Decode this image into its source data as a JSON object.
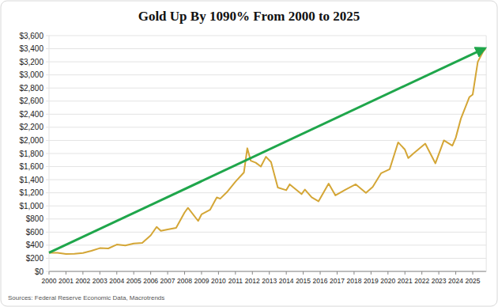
{
  "chart_data": {
    "type": "line",
    "title": "Gold Up By 1090% From 2000 to 2025",
    "source": "Sources: Federal Reserve Economic Data, Macrotrends",
    "color": "#d4a636",
    "grid": true,
    "x": [
      2000,
      2000.5,
      2001,
      2001.5,
      2002,
      2002.5,
      2003,
      2003.5,
      2004,
      2004.5,
      2005,
      2005.5,
      2006,
      2006.35,
      2006.6,
      2007,
      2007.5,
      2008,
      2008.2,
      2008.8,
      2009,
      2009.5,
      2009.9,
      2010.1,
      2010.5,
      2011,
      2011.5,
      2011.7,
      2011.9,
      2012.2,
      2012.5,
      2012.8,
      2013.1,
      2013.5,
      2014,
      2014.2,
      2014.9,
      2015.1,
      2015.5,
      2015.9,
      2016.5,
      2016.9,
      2017.5,
      2018.1,
      2018.7,
      2019.1,
      2019.6,
      2020.1,
      2020.6,
      2021,
      2021.2,
      2021.5,
      2022.2,
      2022.8,
      2023.3,
      2023.8,
      2024,
      2024.3,
      2024.8,
      2025,
      2025.3,
      2025.6,
      2025.75
    ],
    "values": [
      285,
      285,
      265,
      268,
      282,
      315,
      355,
      350,
      410,
      395,
      425,
      435,
      550,
      680,
      620,
      640,
      665,
      900,
      970,
      770,
      870,
      940,
      1130,
      1110,
      1210,
      1370,
      1510,
      1880,
      1690,
      1660,
      1600,
      1750,
      1670,
      1280,
      1240,
      1330,
      1180,
      1250,
      1130,
      1070,
      1340,
      1160,
      1250,
      1330,
      1200,
      1290,
      1500,
      1560,
      1970,
      1860,
      1730,
      1800,
      1950,
      1650,
      2000,
      1920,
      2040,
      2330,
      2660,
      2700,
      3200,
      3350,
      3400
    ],
    "xlim": [
      2000,
      2025.8
    ],
    "xticks": [
      2000,
      2001,
      2002,
      2003,
      2004,
      2005,
      2006,
      2007,
      2008,
      2009,
      2010,
      2011,
      2012,
      2013,
      2014,
      2015,
      2016,
      2017,
      2018,
      2019,
      2020,
      2021,
      2022,
      2023,
      2024,
      2025
    ],
    "ylim": [
      0,
      3600
    ],
    "yticks": [
      {
        "value": 0,
        "label": "$0"
      },
      {
        "value": 200,
        "label": "$200"
      },
      {
        "value": 400,
        "label": "$400"
      },
      {
        "value": 600,
        "label": "$600"
      },
      {
        "value": 800,
        "label": "$800"
      },
      {
        "value": 1000,
        "label": "$1,000"
      },
      {
        "value": 1200,
        "label": "$1,200"
      },
      {
        "value": 1400,
        "label": "$1,400"
      },
      {
        "value": 1600,
        "label": "$1,600"
      },
      {
        "value": 1800,
        "label": "$1,800"
      },
      {
        "value": 2000,
        "label": "$2,000"
      },
      {
        "value": 2200,
        "label": "$2,200"
      },
      {
        "value": 2400,
        "label": "$2,400"
      },
      {
        "value": 2600,
        "label": "$2,600"
      },
      {
        "value": 2800,
        "label": "$2,800"
      },
      {
        "value": 3000,
        "label": "$3,000"
      },
      {
        "value": 3200,
        "label": "$3,200"
      },
      {
        "value": 3400,
        "label": "$3,400"
      },
      {
        "value": 3600,
        "label": "$3,600"
      }
    ]
  }
}
